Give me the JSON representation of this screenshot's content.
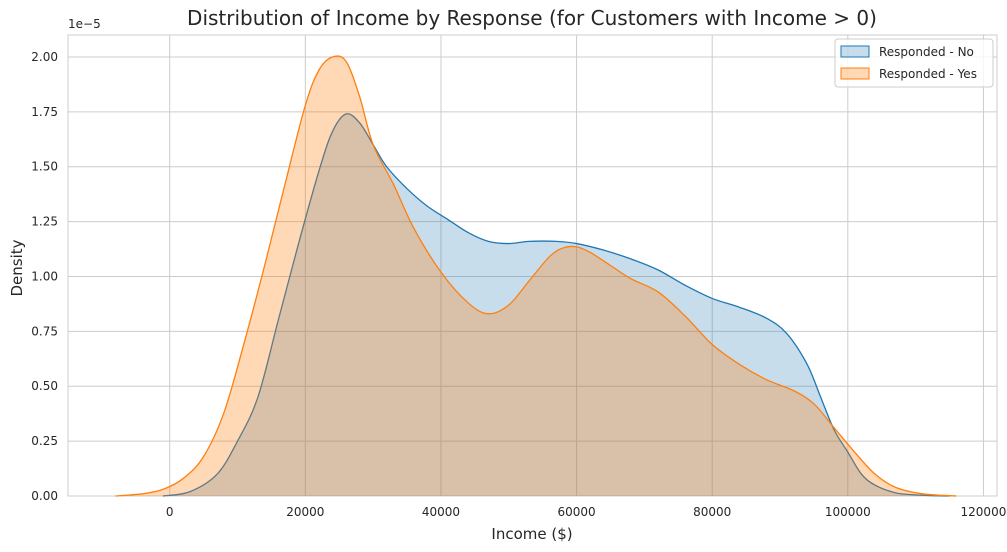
{
  "chart_data": {
    "type": "area",
    "title": "Distribution of Income by Response (for Customers with Income > 0)",
    "xlabel": "Income ($)",
    "ylabel": "Density",
    "y_offset_label": "1e−5",
    "xlim": [
      -15000,
      122000
    ],
    "ylim": [
      0,
      2.1
    ],
    "x_ticks": [
      0,
      20000,
      40000,
      60000,
      80000,
      100000,
      120000
    ],
    "x_tick_labels": [
      "0",
      "20000",
      "40000",
      "60000",
      "80000",
      "100000",
      "120000"
    ],
    "y_ticks": [
      0,
      0.25,
      0.5,
      0.75,
      1.0,
      1.25,
      1.5,
      1.75,
      2.0
    ],
    "y_tick_labels": [
      "0.00",
      "0.25",
      "0.50",
      "0.75",
      "1.00",
      "1.25",
      "1.50",
      "1.75",
      "2.00"
    ],
    "grid": true,
    "legend_position": "top-right",
    "series": [
      {
        "name": "Responded - No",
        "color": "#1f77b4",
        "fill_opacity": 0.25,
        "x": [
          -1000,
          3000,
          7000,
          10000,
          13000,
          16000,
          19000,
          22000,
          24000,
          26000,
          28000,
          30000,
          32000,
          35000,
          38000,
          41000,
          44000,
          47000,
          50000,
          53000,
          57000,
          60000,
          64000,
          68000,
          72000,
          76000,
          80000,
          84000,
          88000,
          91000,
          94000,
          96000,
          98000,
          100000,
          102000,
          104000,
          107000,
          110000,
          113000,
          115000
        ],
        "y": [
          0.0,
          0.02,
          0.1,
          0.25,
          0.45,
          0.8,
          1.15,
          1.48,
          1.66,
          1.74,
          1.7,
          1.6,
          1.5,
          1.4,
          1.32,
          1.26,
          1.2,
          1.16,
          1.15,
          1.16,
          1.16,
          1.15,
          1.12,
          1.08,
          1.03,
          0.96,
          0.9,
          0.86,
          0.81,
          0.74,
          0.6,
          0.45,
          0.3,
          0.2,
          0.1,
          0.05,
          0.015,
          0.005,
          0.001,
          0.0
        ]
      },
      {
        "name": "Responded - Yes",
        "color": "#ff7f0e",
        "fill_opacity": 0.3,
        "x": [
          -8000,
          -4000,
          -1000,
          2000,
          5000,
          8000,
          11000,
          14000,
          17000,
          20000,
          22000,
          24000,
          26000,
          28000,
          30000,
          33000,
          36000,
          40000,
          44000,
          47000,
          50000,
          53000,
          56000,
          58000,
          60000,
          62000,
          65000,
          68000,
          72000,
          76000,
          80000,
          84000,
          88000,
          92000,
          95000,
          98000,
          101000,
          104000,
          107000,
          111000,
          116000
        ],
        "y": [
          0.0,
          0.01,
          0.03,
          0.08,
          0.18,
          0.38,
          0.7,
          1.05,
          1.42,
          1.78,
          1.94,
          2.0,
          1.98,
          1.82,
          1.6,
          1.42,
          1.22,
          1.02,
          0.88,
          0.83,
          0.87,
          0.98,
          1.09,
          1.13,
          1.135,
          1.11,
          1.05,
          0.99,
          0.93,
          0.82,
          0.69,
          0.6,
          0.53,
          0.48,
          0.42,
          0.31,
          0.2,
          0.1,
          0.04,
          0.01,
          0.0
        ]
      }
    ]
  }
}
